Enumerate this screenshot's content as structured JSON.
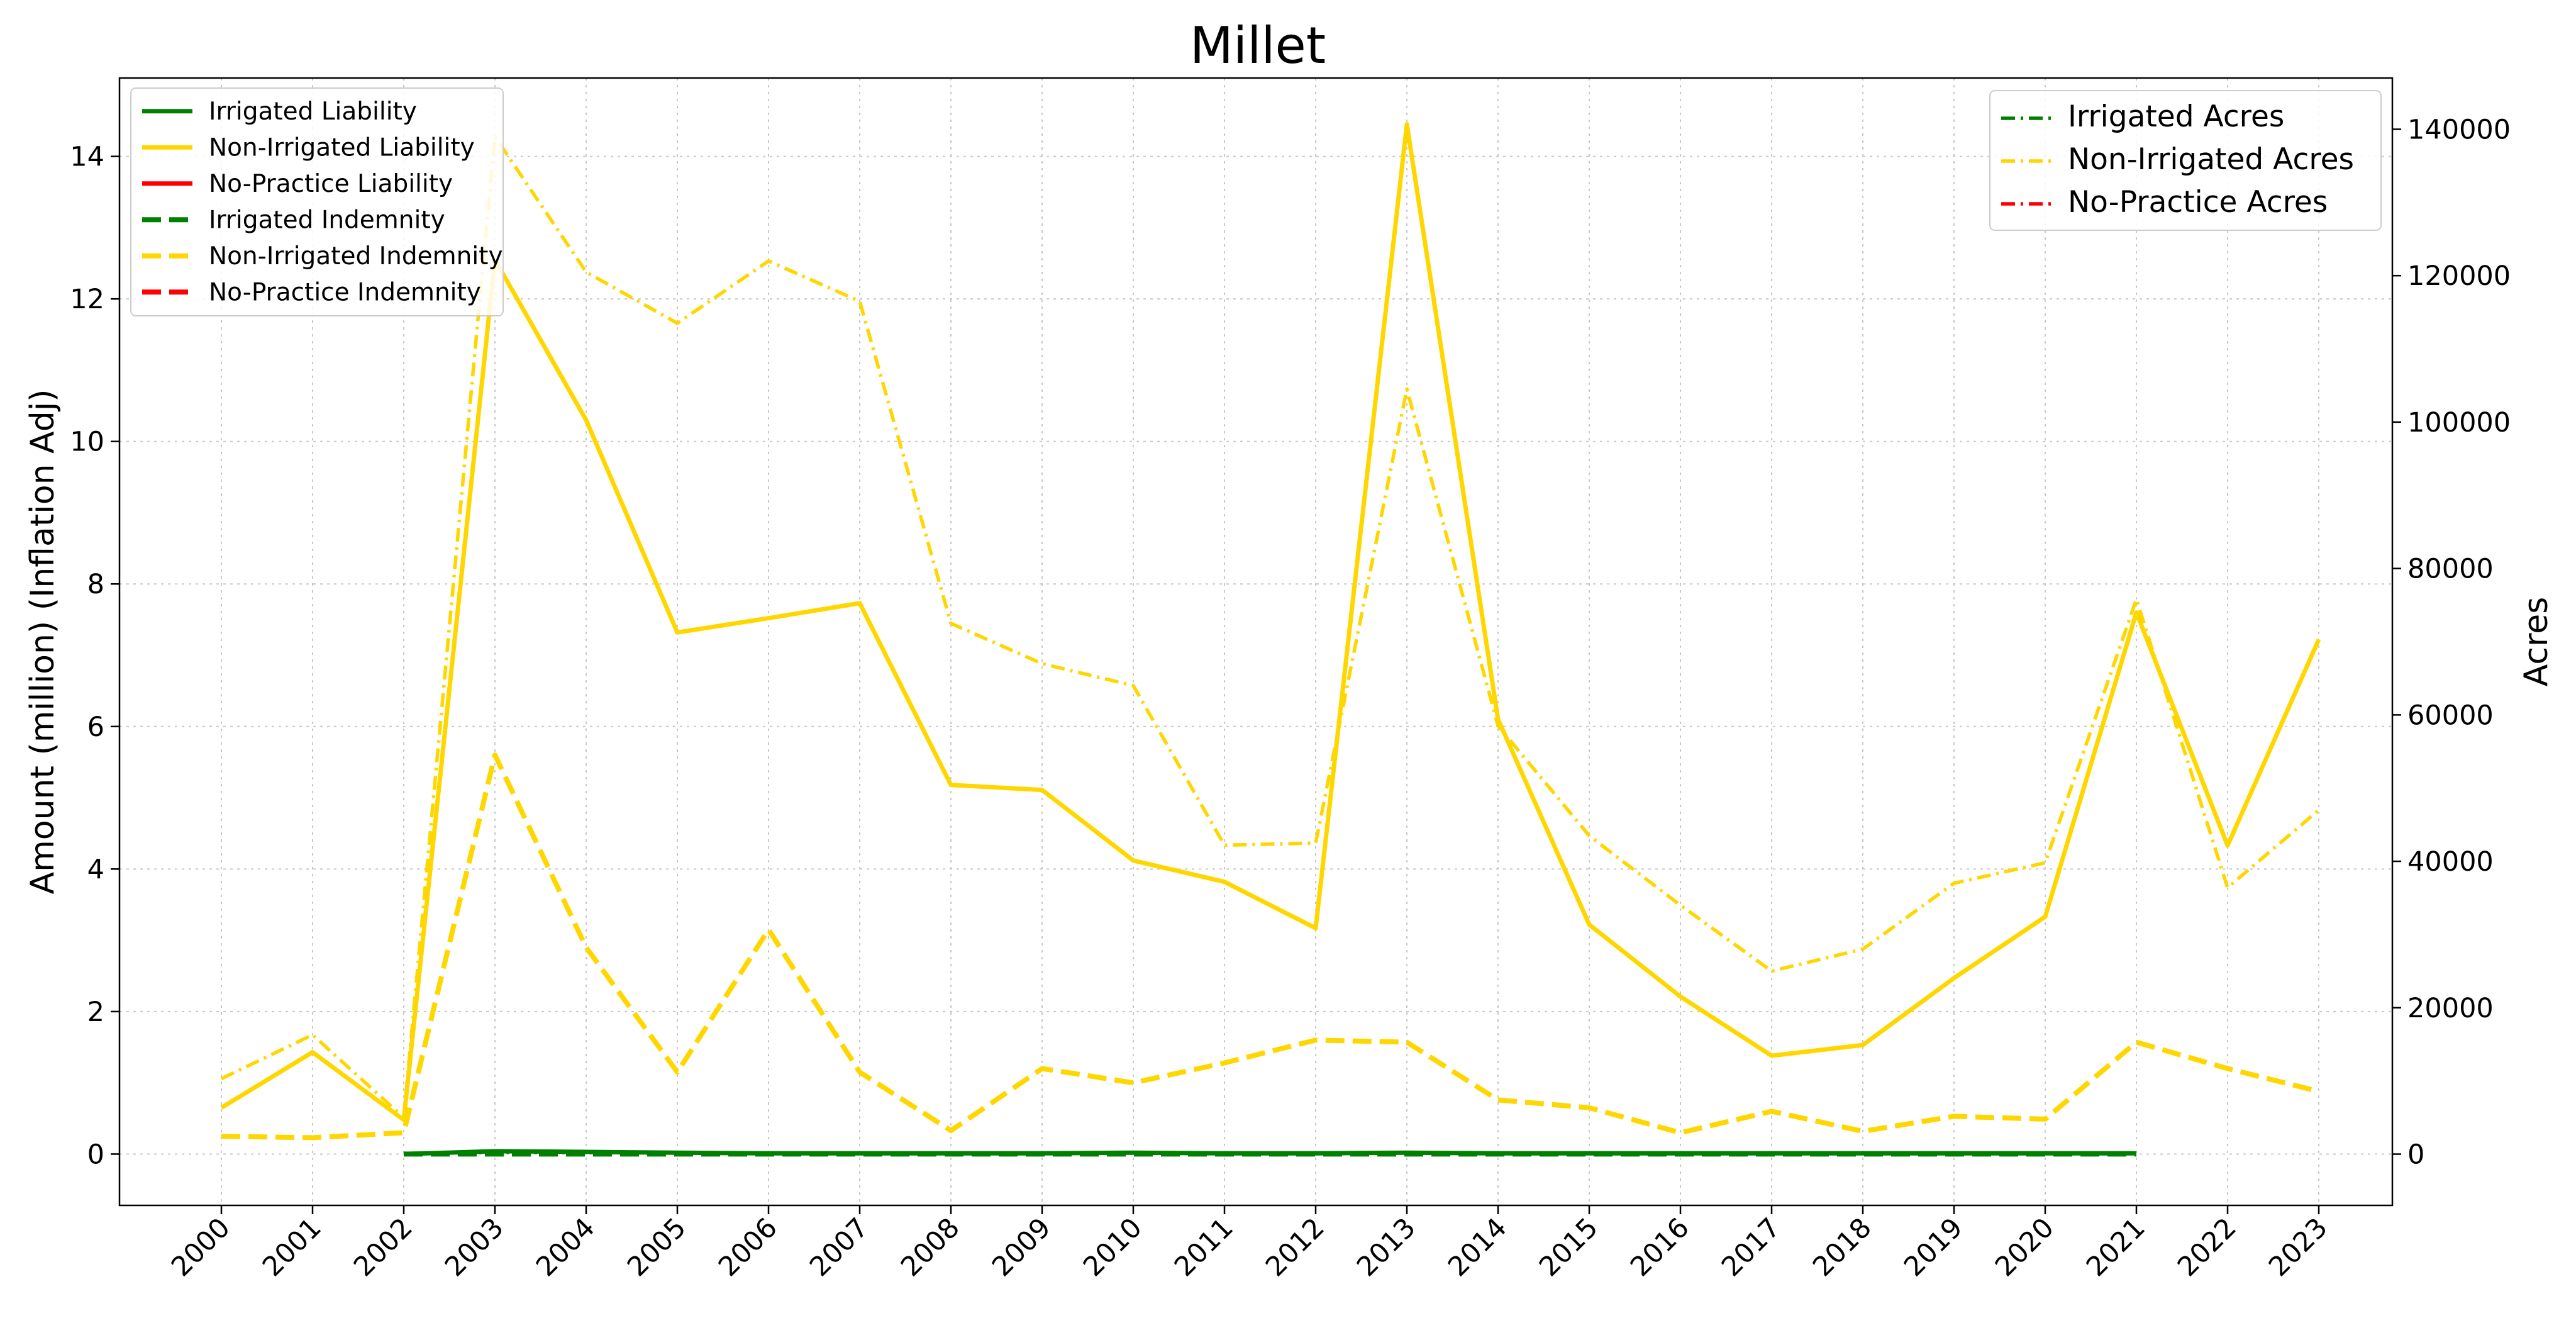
{
  "chart_data": {
    "type": "line",
    "title": "Millet",
    "ylabel_left": "Amount (million) (Inflation Adj)",
    "ylabel_right": "Acres",
    "xlabel": "",
    "x": [
      "2000",
      "2001",
      "2002",
      "2003",
      "2004",
      "2005",
      "2006",
      "2007",
      "2008",
      "2009",
      "2010",
      "2011",
      "2012",
      "2013",
      "2014",
      "2015",
      "2016",
      "2017",
      "2018",
      "2019",
      "2020",
      "2021",
      "2022",
      "2023"
    ],
    "ylim_left": [
      -0.72,
      15.1
    ],
    "ylim_right": [
      -7000,
      147000
    ],
    "yticks_left": [
      "0",
      "2",
      "4",
      "6",
      "8",
      "10",
      "12",
      "14"
    ],
    "yticks_right": [
      "0",
      "20000",
      "40000",
      "60000",
      "80000",
      "100000",
      "120000",
      "140000"
    ],
    "grid": true,
    "colors": {
      "irrigated": "#008000",
      "non_irrigated": "#FFD700",
      "no_practice": "#FF0000"
    },
    "left_legend": {
      "placement": "top-left",
      "entries": [
        {
          "label": "Irrigated Liability",
          "color": "#008000",
          "style": "solid"
        },
        {
          "label": "Non-Irrigated Liability",
          "color": "#FFD700",
          "style": "solid"
        },
        {
          "label": "No-Practice Liability",
          "color": "#FF0000",
          "style": "solid"
        },
        {
          "label": "Irrigated Indemnity",
          "color": "#008000",
          "style": "dashed"
        },
        {
          "label": "Non-Irrigated Indemnity",
          "color": "#FFD700",
          "style": "dashed"
        },
        {
          "label": "No-Practice Indemnity",
          "color": "#FF0000",
          "style": "dashed"
        }
      ]
    },
    "right_legend": {
      "placement": "top-right",
      "entries": [
        {
          "label": "Irrigated Acres",
          "color": "#008000",
          "style": "dashdot"
        },
        {
          "label": "Non-Irrigated Acres",
          "color": "#FFD700",
          "style": "dashdot"
        },
        {
          "label": "No-Practice Acres",
          "color": "#FF0000",
          "style": "dashdot"
        }
      ]
    },
    "series": [
      {
        "name": "Non-Irrigated Acres",
        "axis": "right",
        "color": "#FFD700",
        "style": "dashdot",
        "values": [
          10300,
          16300,
          5000,
          139000,
          120500,
          113500,
          122000,
          116500,
          72500,
          67000,
          64000,
          42200,
          42500,
          104500,
          58500,
          43500,
          34000,
          25000,
          28000,
          37000,
          39800,
          75800,
          36400,
          47000
        ]
      },
      {
        "name": "Irrigated Acres",
        "axis": "right",
        "color": "#008000",
        "style": "dashdot",
        "values": [
          null,
          null,
          100,
          300,
          250,
          200,
          150,
          150,
          150,
          150,
          150,
          150,
          150,
          150,
          150,
          150,
          150,
          150,
          150,
          150,
          150,
          150,
          null,
          null
        ]
      },
      {
        "name": "Non-Irrigated Indemnity",
        "axis": "left",
        "color": "#FFD700",
        "style": "dashed",
        "values": [
          0.25,
          0.23,
          0.3,
          5.6,
          2.9,
          1.15,
          3.15,
          1.15,
          0.33,
          1.2,
          1.0,
          1.28,
          1.6,
          1.57,
          0.76,
          0.65,
          0.3,
          0.6,
          0.32,
          0.53,
          0.49,
          1.57,
          1.2,
          0.88
        ]
      },
      {
        "name": "Irrigated Indemnity",
        "axis": "left",
        "color": "#008000",
        "style": "dashed",
        "values": [
          null,
          null,
          0.0,
          0.0,
          0.0,
          0.0,
          0.0,
          0.0,
          0.0,
          0.0,
          0.0,
          0.0,
          0.0,
          0.0,
          0.0,
          0.0,
          0.0,
          0.0,
          0.0,
          0.0,
          0.0,
          0.0,
          null,
          null
        ]
      },
      {
        "name": "Non-Irrigated Liability",
        "axis": "left",
        "color": "#FFD700",
        "style": "solid",
        "values": [
          0.65,
          1.43,
          0.48,
          12.55,
          10.3,
          7.32,
          7.52,
          7.73,
          5.18,
          5.11,
          4.12,
          3.82,
          3.17,
          14.45,
          6.1,
          3.22,
          2.21,
          1.38,
          1.53,
          2.47,
          3.33,
          7.6,
          4.33,
          7.22
        ]
      },
      {
        "name": "Irrigated Liability",
        "axis": "left",
        "color": "#008000",
        "style": "solid",
        "values": [
          null,
          null,
          0.0,
          0.04,
          0.03,
          0.02,
          0.01,
          0.01,
          0.01,
          0.01,
          0.02,
          0.01,
          0.01,
          0.02,
          0.01,
          0.01,
          0.01,
          0.01,
          0.01,
          0.01,
          0.01,
          0.01,
          null,
          null
        ]
      }
    ]
  }
}
